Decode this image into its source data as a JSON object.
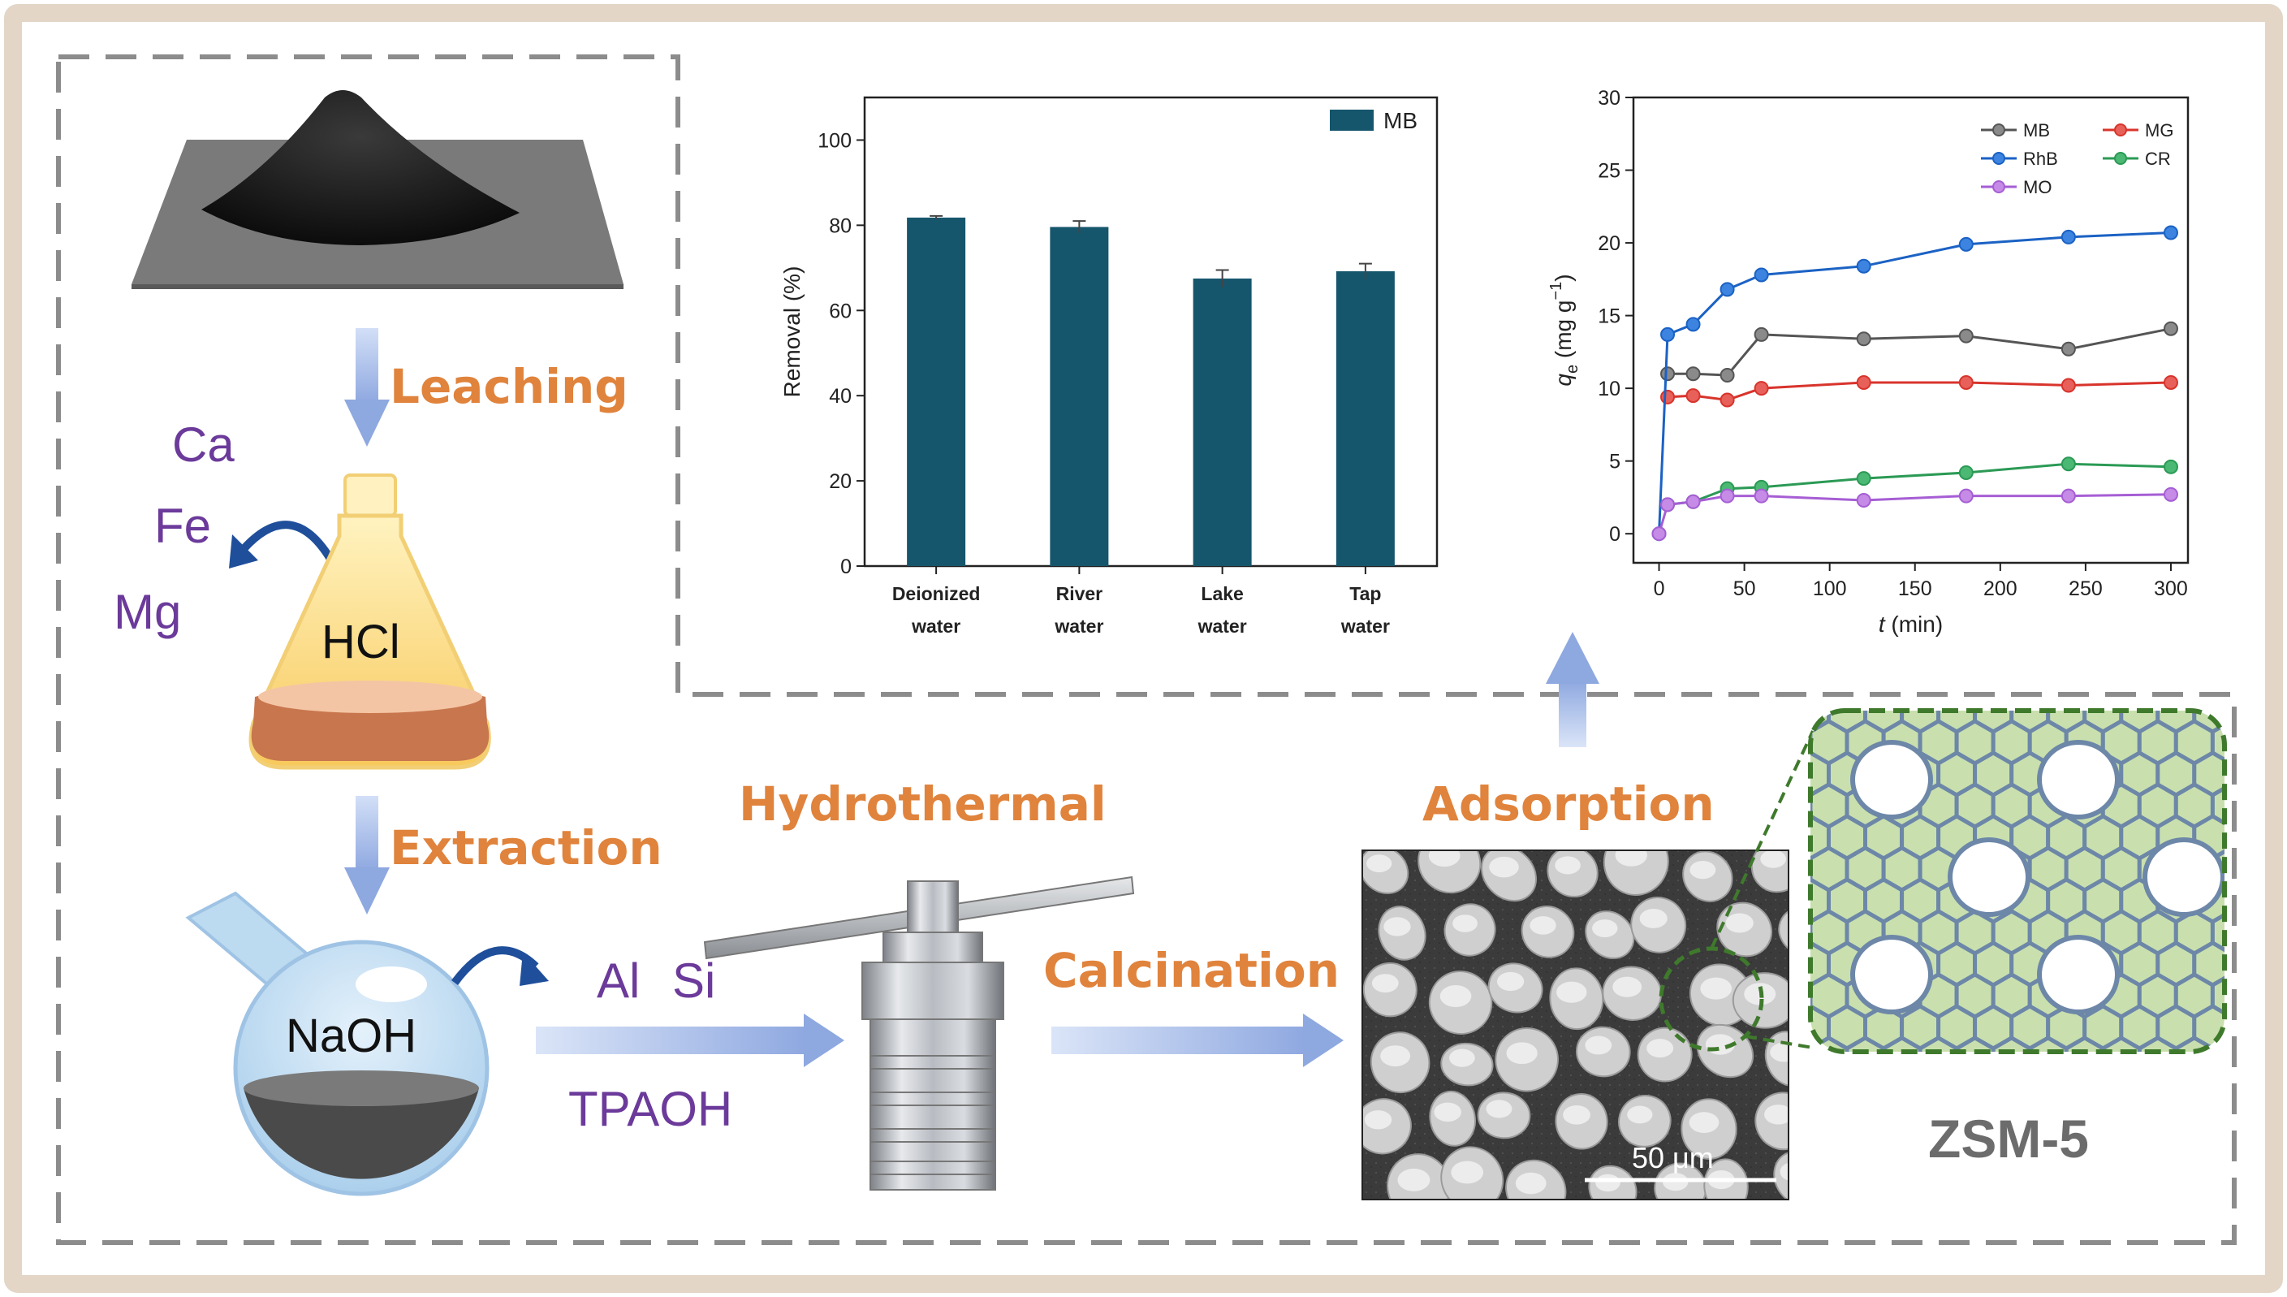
{
  "steps": {
    "leaching": "Leaching",
    "extraction": "Extraction",
    "hydrothermal": "Hydrothermal",
    "calcination": "Calcination",
    "adsorption": "Adsorption"
  },
  "reagents": {
    "hcl": "HCl",
    "naoh": "NaOH",
    "ca": "Ca",
    "fe": "Fe",
    "mg": "Mg",
    "al": "Al",
    "si": "Si",
    "tpaoh": "TPAOH"
  },
  "sem": {
    "scale_label": "50 μm"
  },
  "zeolite_label": "ZSM-5",
  "colors": {
    "step_text": "#e0833c",
    "element_text": "#6b3a9a",
    "bar_fill": "#16566c",
    "frame_border": "#e3d6c7",
    "dashed_border": "#8c8c8c",
    "zsm_dashed": "#3f7a2c",
    "zsm_fill": "#c9e0ae",
    "zsm_line": "#6d87a8",
    "arrow": "#9fb4e3"
  },
  "chart_data": [
    {
      "type": "bar",
      "categories": [
        [
          "Deionized",
          "water"
        ],
        [
          "River",
          "water"
        ],
        [
          "Lake",
          "water"
        ],
        [
          "Tap",
          "water"
        ]
      ],
      "values": [
        81.8,
        79.6,
        67.5,
        69.2
      ],
      "errors": [
        0.4,
        1.4,
        2.0,
        1.8
      ],
      "series_name": "MB",
      "ylabel": "Removal  (%)",
      "ylim": [
        0,
        110
      ],
      "yticks": [
        0,
        20,
        40,
        60,
        80,
        100
      ],
      "legend": "top-right"
    },
    {
      "type": "line",
      "xlabel_italic": "t",
      "xlabel_rest": " (min)",
      "ylabel_main": "q",
      "ylabel_sub": "e",
      "ylabel_rest": " (mg g",
      "ylabel_sup": "−1",
      "ylabel_end": ")",
      "xlim": [
        -15,
        310
      ],
      "ylim": [
        -2,
        30
      ],
      "xticks": [
        0,
        50,
        100,
        150,
        200,
        250,
        300
      ],
      "yticks": [
        0,
        5,
        10,
        15,
        20,
        25,
        30
      ],
      "legend": "top-right",
      "series": [
        {
          "name": "MB",
          "color": "#555555",
          "fill": "#8a8a8a",
          "x": [
            5,
            20,
            40,
            60,
            120,
            180,
            240,
            300
          ],
          "y": [
            11.0,
            11.0,
            10.9,
            13.7,
            13.4,
            13.6,
            12.7,
            14.1
          ]
        },
        {
          "name": "MG",
          "color": "#d8342c",
          "fill": "#e8605a",
          "x": [
            5,
            20,
            40,
            60,
            120,
            180,
            240,
            300
          ],
          "y": [
            9.4,
            9.5,
            9.2,
            10.0,
            10.4,
            10.4,
            10.2,
            10.4
          ]
        },
        {
          "name": "RhB",
          "color": "#1b62c4",
          "fill": "#3c84e0",
          "x": [
            0,
            5,
            20,
            40,
            60,
            120,
            180,
            240,
            300
          ],
          "y": [
            0,
            13.7,
            14.4,
            16.8,
            17.8,
            18.4,
            19.9,
            20.4,
            20.7
          ]
        },
        {
          "name": "CR",
          "color": "#2b9a55",
          "fill": "#4bb873",
          "x": [
            5,
            20,
            40,
            60,
            120,
            180,
            240,
            300
          ],
          "y": [
            2.0,
            2.2,
            3.1,
            3.2,
            3.8,
            4.2,
            4.8,
            4.6
          ]
        },
        {
          "name": "MO",
          "color": "#a65ed4",
          "fill": "#c58be6",
          "x": [
            0,
            5,
            20,
            40,
            60,
            120,
            180,
            240,
            300
          ],
          "y": [
            0,
            2.0,
            2.2,
            2.6,
            2.6,
            2.3,
            2.6,
            2.6,
            2.7
          ]
        }
      ]
    }
  ]
}
